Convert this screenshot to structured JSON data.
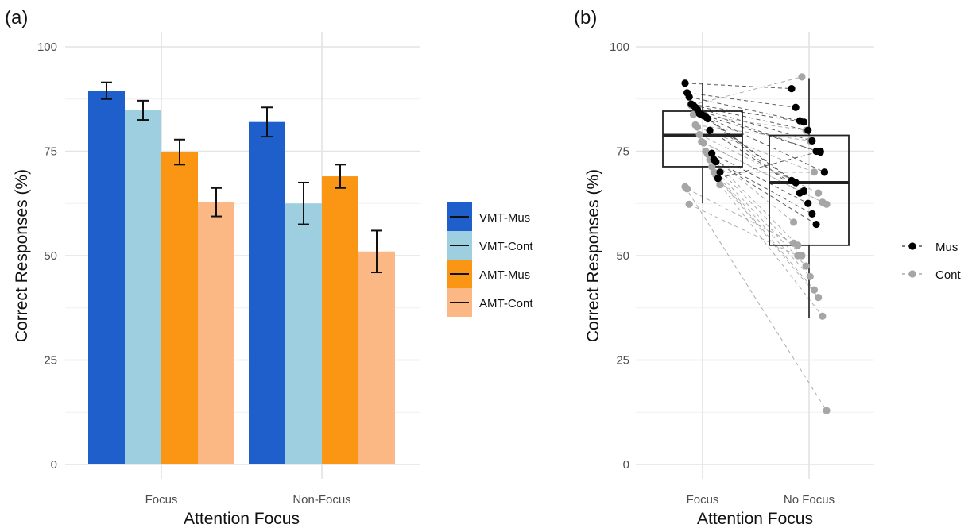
{
  "figure": {
    "panel_a_label": "(a)",
    "panel_b_label": "(b)"
  },
  "chart_data": [
    {
      "type": "bar",
      "panel": "(a)",
      "xlabel": "Attention Focus",
      "ylabel": "Correct Responses (%)",
      "ylim": [
        0,
        100
      ],
      "yticks": [
        "0",
        "25",
        "50",
        "75",
        "100"
      ],
      "categories": [
        "Focus",
        "Non-Focus"
      ],
      "grid": true,
      "legend_position": "right",
      "series": [
        {
          "name": "VMT-Mus",
          "color": "#1f5fcc",
          "values": [
            89.5,
            82.0
          ],
          "error": [
            2.0,
            3.5
          ]
        },
        {
          "name": "VMT-Cont",
          "color": "#9ecfe0",
          "values": [
            84.8,
            62.5
          ],
          "error": [
            2.3,
            5.0
          ]
        },
        {
          "name": "AMT-Mus",
          "color": "#fb9514",
          "values": [
            74.8,
            69.0
          ],
          "error": [
            3.0,
            2.8
          ]
        },
        {
          "name": "AMT-Cont",
          "color": "#fbb885",
          "values": [
            62.8,
            51.0
          ],
          "error": [
            3.4,
            5.0
          ]
        }
      ]
    },
    {
      "type": "scatter",
      "subtype": "box-and-jitter",
      "panel": "(b)",
      "xlabel": "Attention Focus",
      "ylabel": "Correct Responses (%)",
      "ylim": [
        0,
        100
      ],
      "yticks": [
        "0",
        "25",
        "50",
        "75",
        "100"
      ],
      "categories": [
        "Focus",
        "No Focus"
      ],
      "grid": true,
      "legend_position": "right",
      "boxes": [
        {
          "category": "Focus",
          "min": 62.5,
          "q1": 71.3,
          "median": 78.8,
          "q3": 84.6,
          "max": 91.3
        },
        {
          "category": "No Focus",
          "min": 35.0,
          "q1": 52.5,
          "median": 67.5,
          "q3": 78.8,
          "max": 92.5
        }
      ],
      "series": [
        {
          "name": "Mus",
          "color": "#000000",
          "values": [
            {
              "focus": 91.3,
              "no_focus": 90.0
            },
            {
              "focus": 89.0,
              "no_focus": 85.5
            },
            {
              "focus": 88.0,
              "no_focus": 82.3
            },
            {
              "focus": 86.3,
              "no_focus": 82.0
            },
            {
              "focus": 86.0,
              "no_focus": 80.0
            },
            {
              "focus": 85.5,
              "no_focus": 77.5
            },
            {
              "focus": 85.0,
              "no_focus": 75.0
            },
            {
              "focus": 84.0,
              "no_focus": 74.8
            },
            {
              "focus": 83.8,
              "no_focus": 70.0
            },
            {
              "focus": 83.5,
              "no_focus": 68.0
            },
            {
              "focus": 83.3,
              "no_focus": 67.5
            },
            {
              "focus": 82.8,
              "no_focus": 65.0
            },
            {
              "focus": 80.0,
              "no_focus": 65.5
            },
            {
              "focus": 74.5,
              "no_focus": 62.5
            },
            {
              "focus": 73.0,
              "no_focus": 60.0
            },
            {
              "focus": 72.5,
              "no_focus": 57.5
            },
            {
              "focus": 68.5,
              "no_focus": 75.0
            },
            {
              "focus": 70.0,
              "no_focus": 70.0
            }
          ]
        },
        {
          "name": "Cont",
          "color": "#a6a6a6",
          "values": [
            {
              "focus": 86.0,
              "no_focus": 92.8
            },
            {
              "focus": 83.8,
              "no_focus": 80.0
            },
            {
              "focus": 81.3,
              "no_focus": 77.5
            },
            {
              "focus": 80.8,
              "no_focus": 70.0
            },
            {
              "focus": 79.0,
              "no_focus": 65.0
            },
            {
              "focus": 77.3,
              "no_focus": 62.8
            },
            {
              "focus": 77.0,
              "no_focus": 62.3
            },
            {
              "focus": 75.0,
              "no_focus": 58.0
            },
            {
              "focus": 74.3,
              "no_focus": 52.5
            },
            {
              "focus": 73.0,
              "no_focus": 50.0
            },
            {
              "focus": 71.3,
              "no_focus": 47.5
            },
            {
              "focus": 70.0,
              "no_focus": 45.0
            },
            {
              "focus": 69.3,
              "no_focus": 41.8
            },
            {
              "focus": 68.5,
              "no_focus": 40.0
            },
            {
              "focus": 67.0,
              "no_focus": 35.5
            },
            {
              "focus": 66.5,
              "no_focus": 12.9
            },
            {
              "focus": 66.0,
              "no_focus": 53.0
            },
            {
              "focus": 62.3,
              "no_focus": 50.0
            }
          ]
        }
      ]
    }
  ]
}
